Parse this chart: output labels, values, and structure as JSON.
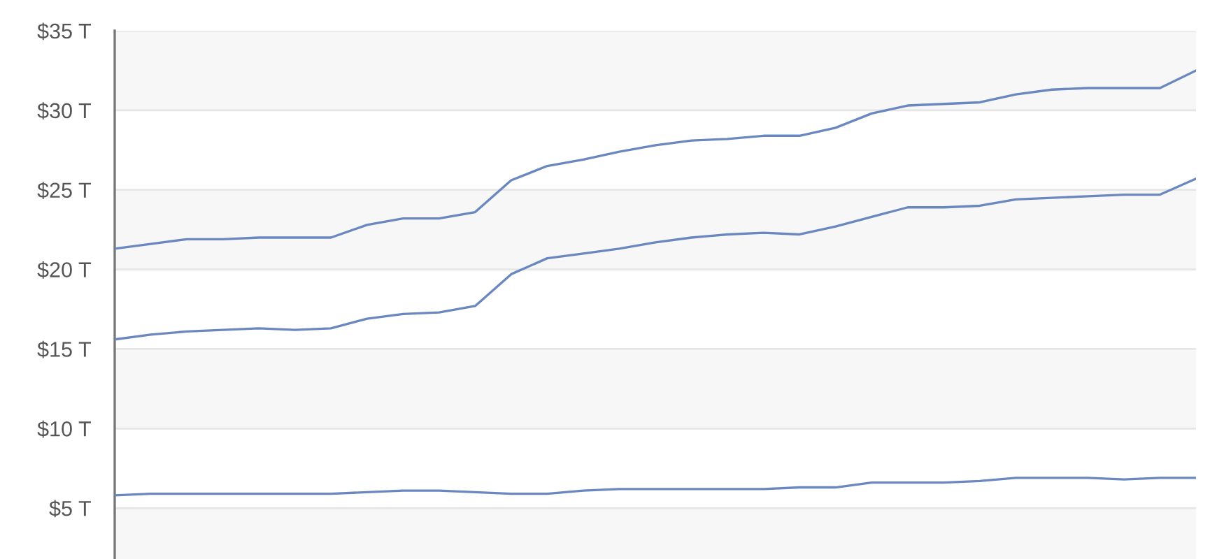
{
  "chart_data": {
    "type": "line",
    "categories": [
      null,
      null,
      null,
      null,
      null,
      null,
      null,
      null,
      null,
      null,
      null,
      null,
      null,
      null,
      null,
      null,
      null,
      null,
      null,
      null,
      null,
      null,
      null,
      null,
      null,
      null,
      null,
      null,
      null,
      null,
      null
    ],
    "ylim": [
      1.8,
      35
    ],
    "yticks": [
      {
        "value": 5,
        "label": "$5 T"
      },
      {
        "value": 10,
        "label": "$10 T"
      },
      {
        "value": 15,
        "label": "$15 T"
      },
      {
        "value": 20,
        "label": "$20 T"
      },
      {
        "value": 25,
        "label": "$25 T"
      },
      {
        "value": 30,
        "label": "$30 T"
      },
      {
        "value": 35,
        "label": "$35 T"
      }
    ],
    "tick_labels": "y",
    "grid": "y",
    "marker": "none",
    "line_style": "solid",
    "bands": [
      {
        "axis": "y",
        "from": 30,
        "to": 35,
        "color": "#f7f7f7"
      },
      {
        "axis": "y",
        "from": 20,
        "to": 25,
        "color": "#f7f7f7"
      },
      {
        "axis": "y",
        "from": 10,
        "to": 15,
        "color": "#f7f7f7"
      },
      {
        "axis": "y",
        "from": 1.8,
        "to": 5,
        "color": "#f7f7f7"
      }
    ],
    "series": [
      {
        "color": "#6a87c0",
        "values": [
          21.3,
          21.6,
          21.9,
          21.9,
          22.0,
          22.0,
          22.0,
          22.8,
          23.2,
          23.2,
          23.6,
          25.6,
          26.5,
          26.9,
          27.4,
          27.8,
          28.1,
          28.2,
          28.4,
          28.4,
          28.9,
          29.8,
          30.3,
          30.4,
          30.5,
          31.0,
          31.3,
          31.4,
          31.4,
          31.4,
          32.5
        ]
      },
      {
        "color": "#6a87c0",
        "values": [
          15.6,
          15.9,
          16.1,
          16.2,
          16.3,
          16.2,
          16.3,
          16.9,
          17.2,
          17.3,
          17.7,
          19.7,
          20.7,
          21.0,
          21.3,
          21.7,
          22.0,
          22.2,
          22.3,
          22.2,
          22.7,
          23.3,
          23.9,
          23.9,
          24.0,
          24.4,
          24.5,
          24.6,
          24.7,
          24.7,
          25.7
        ]
      },
      {
        "color": "#6a87c0",
        "values": [
          5.8,
          5.9,
          5.9,
          5.9,
          5.9,
          5.9,
          5.9,
          6.0,
          6.1,
          6.1,
          6.0,
          5.9,
          5.9,
          6.1,
          6.2,
          6.2,
          6.2,
          6.2,
          6.2,
          6.3,
          6.3,
          6.6,
          6.6,
          6.6,
          6.7,
          6.9,
          6.9,
          6.9,
          6.8,
          6.9,
          6.9
        ]
      }
    ]
  }
}
